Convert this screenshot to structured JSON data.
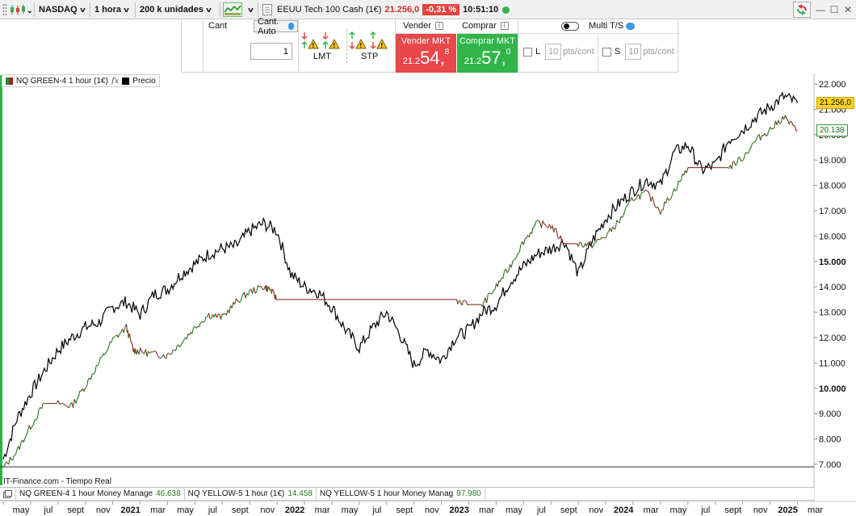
{
  "toolbar": {
    "market": "NASDAQ",
    "timeframe": "1 hora",
    "units": "200 k unidades",
    "instrument": "EEUU Tech 100 Cash (1€)",
    "last_price": "21.256,0",
    "change": "-0,31 %",
    "time": "10:51:10"
  },
  "order_panel": {
    "qty_label": "Cant",
    "qty_auto": "Cant. Auto",
    "qty_value": "1",
    "lmt_label": "LMT",
    "stp_label": "STP",
    "sell_label": "Vender",
    "buy_label": "Comprar",
    "sell_mkt": "Vender MKT",
    "buy_mkt": "Comprar MKT",
    "sell_price": {
      "prefix": "21.2",
      "big": "54,",
      "sup": "8"
    },
    "buy_price": {
      "prefix": "21.2",
      "big": "57,",
      "sup": "0"
    },
    "multi_ts": "Multi T/S",
    "limit": {
      "letter": "L",
      "value": "10",
      "unit": "pts/cont"
    },
    "stop": {
      "letter": "S",
      "value": "10",
      "unit": "pts/cont"
    }
  },
  "legend": {
    "indicator": "NQ GREEN-4 1 hour (1€)",
    "fx": "fx",
    "price": "Precio"
  },
  "source": "IT-Finance.com - Tiempo Real",
  "indicators": [
    {
      "name": "NQ GREEN-4 1 hour Money Manage",
      "value": "46.638"
    },
    {
      "name": "NQ YELLOW-5 1 hour (1€)",
      "value": "14.458"
    },
    {
      "name": "NQ YELLOW-5 1 hour Money Manag",
      "value": "97.980"
    }
  ],
  "price_tags": {
    "current": "21.256,0",
    "indicator": "20.138"
  },
  "chart_data": {
    "type": "line",
    "y_ticks": [
      {
        "v": 22000,
        "label": "22.000",
        "bold": false
      },
      {
        "v": 21000,
        "label": "21.000",
        "bold": false
      },
      {
        "v": 20000,
        "label": "20.000",
        "bold": false
      },
      {
        "v": 19000,
        "label": "19.000",
        "bold": false
      },
      {
        "v": 18000,
        "label": "18.000",
        "bold": false
      },
      {
        "v": 17000,
        "label": "17.000",
        "bold": false
      },
      {
        "v": 16000,
        "label": "16.000",
        "bold": false
      },
      {
        "v": 15000,
        "label": "15.000",
        "bold": true
      },
      {
        "v": 14000,
        "label": "14.000",
        "bold": false
      },
      {
        "v": 13000,
        "label": "13.000",
        "bold": false
      },
      {
        "v": 12000,
        "label": "12.000",
        "bold": false
      },
      {
        "v": 11000,
        "label": "11.000",
        "bold": false
      },
      {
        "v": 10000,
        "label": "10.000",
        "bold": true
      },
      {
        "v": 9000,
        "label": "9.000",
        "bold": false
      },
      {
        "v": 8000,
        "label": "8.000",
        "bold": false
      },
      {
        "v": 7000,
        "label": "7.000",
        "bold": false
      }
    ],
    "x_ticks": [
      {
        "t": 0,
        "label": "may",
        "bold": false
      },
      {
        "t": 2,
        "label": "jul",
        "bold": false
      },
      {
        "t": 4,
        "label": "sept",
        "bold": false
      },
      {
        "t": 6,
        "label": "nov",
        "bold": false
      },
      {
        "t": 8,
        "label": "2021",
        "bold": true
      },
      {
        "t": 10,
        "label": "mar",
        "bold": false
      },
      {
        "t": 12,
        "label": "may",
        "bold": false
      },
      {
        "t": 14,
        "label": "jul",
        "bold": false
      },
      {
        "t": 16,
        "label": "sept",
        "bold": false
      },
      {
        "t": 18,
        "label": "nov",
        "bold": false
      },
      {
        "t": 20,
        "label": "2022",
        "bold": true
      },
      {
        "t": 22,
        "label": "mar",
        "bold": false
      },
      {
        "t": 24,
        "label": "may",
        "bold": false
      },
      {
        "t": 26,
        "label": "jul",
        "bold": false
      },
      {
        "t": 28,
        "label": "sept",
        "bold": false
      },
      {
        "t": 30,
        "label": "nov",
        "bold": false
      },
      {
        "t": 32,
        "label": "2023",
        "bold": true
      },
      {
        "t": 34,
        "label": "mar",
        "bold": false
      },
      {
        "t": 36,
        "label": "may",
        "bold": false
      },
      {
        "t": 38,
        "label": "jul",
        "bold": false
      },
      {
        "t": 40,
        "label": "sept",
        "bold": false
      },
      {
        "t": 42,
        "label": "nov",
        "bold": false
      },
      {
        "t": 44,
        "label": "2024",
        "bold": true
      },
      {
        "t": 46,
        "label": "mar",
        "bold": false
      },
      {
        "t": 48,
        "label": "may",
        "bold": false
      },
      {
        "t": 50,
        "label": "jul",
        "bold": false
      },
      {
        "t": 52,
        "label": "sept",
        "bold": false
      },
      {
        "t": 54,
        "label": "nov",
        "bold": false
      },
      {
        "t": 56,
        "label": "2025",
        "bold": true
      },
      {
        "t": 58,
        "label": "mar",
        "bold": false
      }
    ],
    "baseline": 6900,
    "series": [
      {
        "name": "Precio",
        "color": "#000000",
        "points": [
          [
            0,
            7200
          ],
          [
            1,
            8800
          ],
          [
            2,
            9800
          ],
          [
            3,
            10700
          ],
          [
            4,
            11500
          ],
          [
            5,
            12000
          ],
          [
            6,
            12400
          ],
          [
            7,
            12600
          ],
          [
            8,
            13200
          ],
          [
            9,
            13400
          ],
          [
            10,
            12900
          ],
          [
            11,
            13700
          ],
          [
            12,
            13900
          ],
          [
            13,
            14500
          ],
          [
            14,
            14900
          ],
          [
            15,
            15300
          ],
          [
            16,
            15500
          ],
          [
            17,
            15600
          ],
          [
            18,
            16200
          ],
          [
            19,
            16500
          ],
          [
            20,
            16200
          ],
          [
            21,
            14500
          ],
          [
            22,
            14000
          ],
          [
            23,
            13800
          ],
          [
            24,
            13200
          ],
          [
            25,
            12300
          ],
          [
            26,
            11600
          ],
          [
            27,
            12400
          ],
          [
            28,
            13000
          ],
          [
            29,
            12100
          ],
          [
            30,
            10900
          ],
          [
            31,
            11500
          ],
          [
            32,
            11100
          ],
          [
            33,
            12000
          ],
          [
            34,
            12300
          ],
          [
            35,
            13000
          ],
          [
            36,
            13300
          ],
          [
            37,
            14200
          ],
          [
            38,
            14800
          ],
          [
            39,
            15300
          ],
          [
            40,
            15500
          ],
          [
            41,
            15800
          ],
          [
            42,
            14500
          ],
          [
            43,
            15800
          ],
          [
            44,
            16700
          ],
          [
            45,
            17300
          ],
          [
            46,
            17800
          ],
          [
            47,
            18200
          ],
          [
            48,
            18000
          ],
          [
            49,
            19300
          ],
          [
            50,
            19600
          ],
          [
            51,
            18600
          ],
          [
            52,
            18800
          ],
          [
            53,
            19800
          ],
          [
            54,
            20200
          ],
          [
            55,
            20700
          ],
          [
            56,
            21100
          ],
          [
            57,
            21500
          ],
          [
            58,
            21250
          ]
        ]
      },
      {
        "name": "NQ GREEN-4 1 hour (1€)",
        "color": "#1f7a1f",
        "points": [
          [
            0,
            6850
          ],
          [
            1,
            7500
          ],
          [
            2,
            8500
          ],
          [
            3,
            9400
          ],
          [
            4,
            9400
          ],
          [
            5,
            9300
          ],
          [
            6,
            10100
          ],
          [
            7,
            11000
          ],
          [
            8,
            11900
          ],
          [
            9,
            12400
          ],
          [
            9.5,
            11500
          ],
          [
            10,
            11450
          ],
          [
            11,
            11350
          ],
          [
            12,
            11300
          ],
          [
            13,
            11800
          ],
          [
            14,
            12400
          ],
          [
            15,
            12900
          ],
          [
            16,
            12800
          ],
          [
            17,
            13400
          ],
          [
            18,
            13800
          ],
          [
            19,
            14000
          ],
          [
            19.5,
            13900
          ],
          [
            20,
            13500
          ],
          [
            21,
            13500
          ],
          [
            22,
            13500
          ],
          [
            23,
            13500
          ],
          [
            24,
            13500
          ],
          [
            25,
            13500
          ],
          [
            26,
            13500
          ],
          [
            27,
            13500
          ],
          [
            28,
            13500
          ],
          [
            29,
            13500
          ],
          [
            30,
            13500
          ],
          [
            31,
            13500
          ],
          [
            32,
            13500
          ],
          [
            33,
            13500
          ],
          [
            34,
            13300
          ],
          [
            35,
            13300
          ],
          [
            36,
            14000
          ],
          [
            37,
            14800
          ],
          [
            38,
            15800
          ],
          [
            39,
            16500
          ],
          [
            40,
            16400
          ],
          [
            41,
            15700
          ],
          [
            42,
            15700
          ],
          [
            43,
            15650
          ],
          [
            44,
            16000
          ],
          [
            45,
            16600
          ],
          [
            46,
            17500
          ],
          [
            47,
            17700
          ],
          [
            48,
            17000
          ],
          [
            49,
            17800
          ],
          [
            50,
            18700
          ],
          [
            51,
            18700
          ],
          [
            52,
            18700
          ],
          [
            53,
            18700
          ],
          [
            54,
            19100
          ],
          [
            55,
            19800
          ],
          [
            56,
            20200
          ],
          [
            57,
            20700
          ],
          [
            58,
            20140
          ]
        ]
      }
    ]
  }
}
